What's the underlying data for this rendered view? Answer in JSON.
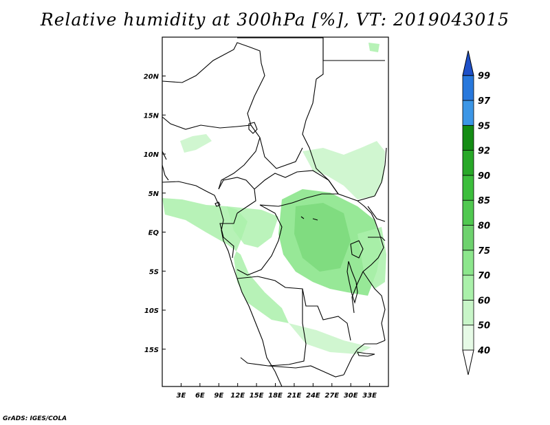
{
  "title": "Relative humidity at 300hPa [%], VT: 2019043015",
  "credit": "GrADS: IGES/COLA",
  "map": {
    "lon_range": [
      0,
      36
    ],
    "lat_range": [
      -20,
      25
    ],
    "lon_ticks": [
      {
        "value": 3,
        "label": "3E"
      },
      {
        "value": 6,
        "label": "6E"
      },
      {
        "value": 9,
        "label": "9E"
      },
      {
        "value": 12,
        "label": "12E"
      },
      {
        "value": 15,
        "label": "15E"
      },
      {
        "value": 18,
        "label": "18E"
      },
      {
        "value": 21,
        "label": "21E"
      },
      {
        "value": 24,
        "label": "24E"
      },
      {
        "value": 27,
        "label": "27E"
      },
      {
        "value": 30,
        "label": "30E"
      },
      {
        "value": 33,
        "label": "33E"
      }
    ],
    "lat_ticks": [
      {
        "value": 20,
        "label": "20N"
      },
      {
        "value": 15,
        "label": "15N"
      },
      {
        "value": 10,
        "label": "10N"
      },
      {
        "value": 5,
        "label": "5N"
      },
      {
        "value": 0,
        "label": "EQ"
      },
      {
        "value": -5,
        "label": "5S"
      },
      {
        "value": -10,
        "label": "10S"
      },
      {
        "value": -15,
        "label": "15S"
      }
    ]
  },
  "colorbar": {
    "levels": [
      "40",
      "50",
      "60",
      "70",
      "75",
      "80",
      "85",
      "90",
      "92",
      "95",
      "97",
      "99"
    ],
    "colors": [
      "#e6fae6",
      "#c8f5c8",
      "#aaf0aa",
      "#8ce68c",
      "#6ed26e",
      "#50c850",
      "#3cbe3c",
      "#28a828",
      "#148c14",
      "#3c96e6",
      "#2878dc",
      "#1e50c8"
    ]
  }
}
